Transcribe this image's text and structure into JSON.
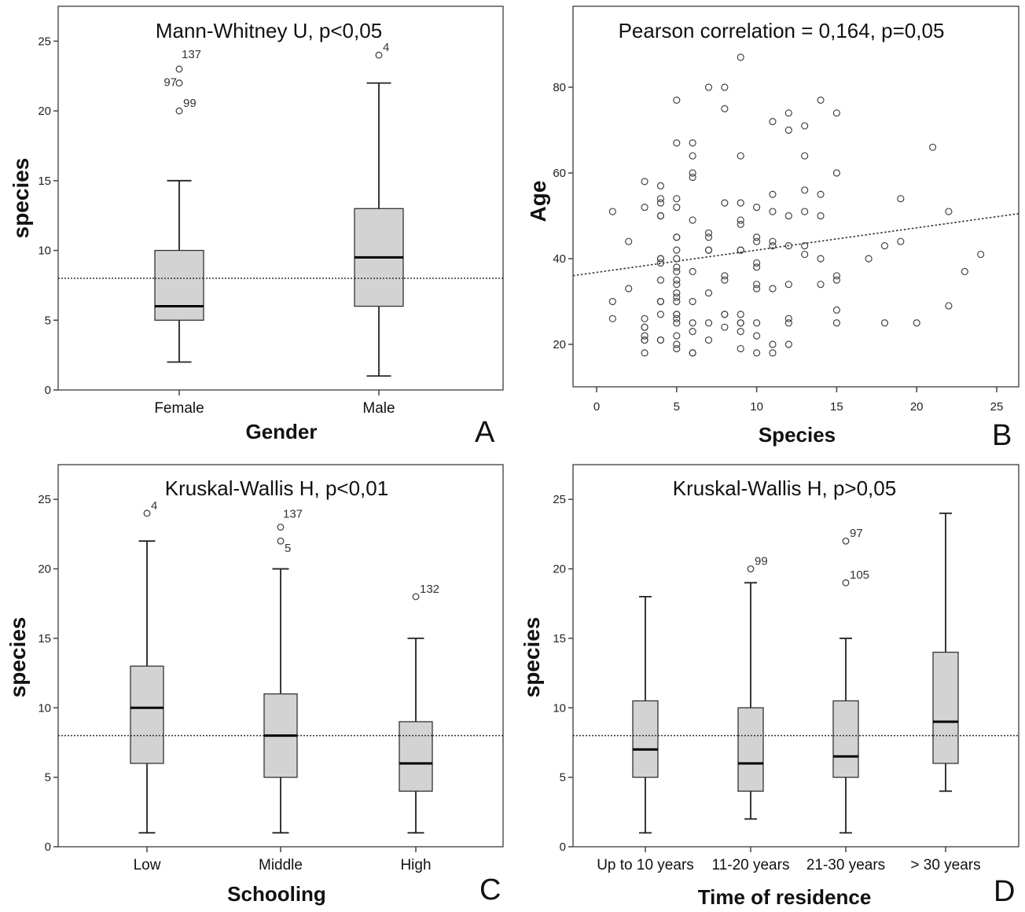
{
  "chart_data": [
    {
      "panel": "A",
      "type": "boxplot",
      "title": "Mann-Whitney U, p<0,05",
      "xlabel": "Gender",
      "ylabel": "species",
      "ylim": [
        0,
        27.5
      ],
      "yticks": [
        0,
        5,
        10,
        15,
        20,
        25
      ],
      "reference_line": 8,
      "categories": [
        "Female",
        "Male"
      ],
      "boxes": [
        {
          "min": 2,
          "q1": 5,
          "median": 6,
          "q3": 10,
          "max": 15,
          "outliers": [
            {
              "value": 23,
              "label": "137"
            },
            {
              "value": 22,
              "label": "97"
            },
            {
              "value": 20,
              "label": "99"
            }
          ]
        },
        {
          "min": 1,
          "q1": 6,
          "median": 9.5,
          "q3": 13,
          "max": 22,
          "outliers": [
            {
              "value": 24,
              "label": "4"
            }
          ]
        }
      ]
    },
    {
      "panel": "B",
      "type": "scatter",
      "title": "Pearson correlation =  0,164, p=0,05",
      "xlabel": "Species",
      "ylabel": "Age",
      "xlim": [
        -1.3,
        26.3
      ],
      "ylim": [
        10,
        96
      ],
      "xticks": [
        0,
        5,
        10,
        15,
        20,
        25
      ],
      "yticks": [
        20,
        40,
        60,
        80
      ],
      "fit_line": {
        "intercept": 36.8,
        "slope": 0.52,
        "style": "dotted"
      },
      "points": [
        [
          1,
          51
        ],
        [
          1,
          30
        ],
        [
          1,
          26
        ],
        [
          2,
          44
        ],
        [
          2,
          33
        ],
        [
          3,
          58
        ],
        [
          3,
          52
        ],
        [
          3,
          26
        ],
        [
          3,
          24
        ],
        [
          3,
          24
        ],
        [
          3,
          22
        ],
        [
          3,
          21
        ],
        [
          3,
          21
        ],
        [
          3,
          18
        ],
        [
          4,
          57
        ],
        [
          4,
          54
        ],
        [
          4,
          53
        ],
        [
          4,
          50
        ],
        [
          4,
          50
        ],
        [
          4,
          40
        ],
        [
          4,
          40
        ],
        [
          4,
          39
        ],
        [
          4,
          35
        ],
        [
          4,
          30
        ],
        [
          4,
          30
        ],
        [
          4,
          27
        ],
        [
          4,
          21
        ],
        [
          4,
          21
        ],
        [
          5,
          77
        ],
        [
          5,
          67
        ],
        [
          5,
          54
        ],
        [
          5,
          52
        ],
        [
          5,
          45
        ],
        [
          5,
          45
        ],
        [
          5,
          42
        ],
        [
          5,
          40
        ],
        [
          5,
          38
        ],
        [
          5,
          37
        ],
        [
          5,
          35
        ],
        [
          5,
          34
        ],
        [
          5,
          32
        ],
        [
          5,
          31
        ],
        [
          5,
          30
        ],
        [
          5,
          27
        ],
        [
          5,
          27
        ],
        [
          5,
          26
        ],
        [
          5,
          25
        ],
        [
          5,
          22
        ],
        [
          5,
          20
        ],
        [
          5,
          19
        ],
        [
          6,
          67
        ],
        [
          6,
          64
        ],
        [
          6,
          60
        ],
        [
          6,
          59
        ],
        [
          6,
          49
        ],
        [
          6,
          37
        ],
        [
          6,
          30
        ],
        [
          6,
          25
        ],
        [
          6,
          23
        ],
        [
          6,
          18
        ],
        [
          6,
          18
        ],
        [
          7,
          80
        ],
        [
          7,
          46
        ],
        [
          7,
          45
        ],
        [
          7,
          42
        ],
        [
          7,
          42
        ],
        [
          7,
          32
        ],
        [
          7,
          25
        ],
        [
          7,
          21
        ],
        [
          8,
          80
        ],
        [
          8,
          75
        ],
        [
          8,
          53
        ],
        [
          8,
          36
        ],
        [
          8,
          35
        ],
        [
          8,
          27
        ],
        [
          8,
          27
        ],
        [
          8,
          24
        ],
        [
          9,
          87
        ],
        [
          9,
          64
        ],
        [
          9,
          53
        ],
        [
          9,
          49
        ],
        [
          9,
          48
        ],
        [
          9,
          42
        ],
        [
          9,
          42
        ],
        [
          9,
          27
        ],
        [
          9,
          25
        ],
        [
          9,
          25
        ],
        [
          9,
          23
        ],
        [
          9,
          19
        ],
        [
          10,
          52
        ],
        [
          10,
          45
        ],
        [
          10,
          44
        ],
        [
          10,
          39
        ],
        [
          10,
          38
        ],
        [
          10,
          34
        ],
        [
          10,
          33
        ],
        [
          10,
          25
        ],
        [
          10,
          22
        ],
        [
          10,
          18
        ],
        [
          11,
          72
        ],
        [
          11,
          55
        ],
        [
          11,
          51
        ],
        [
          11,
          44
        ],
        [
          11,
          43
        ],
        [
          11,
          33
        ],
        [
          11,
          20
        ],
        [
          11,
          18
        ],
        [
          12,
          74
        ],
        [
          12,
          70
        ],
        [
          12,
          50
        ],
        [
          12,
          43
        ],
        [
          12,
          34
        ],
        [
          12,
          26
        ],
        [
          12,
          25
        ],
        [
          12,
          20
        ],
        [
          13,
          71
        ],
        [
          13,
          64
        ],
        [
          13,
          56
        ],
        [
          13,
          51
        ],
        [
          13,
          43
        ],
        [
          13,
          41
        ],
        [
          14,
          77
        ],
        [
          14,
          55
        ],
        [
          14,
          50
        ],
        [
          14,
          40
        ],
        [
          14,
          34
        ],
        [
          15,
          74
        ],
        [
          15,
          60
        ],
        [
          15,
          36
        ],
        [
          15,
          35
        ],
        [
          15,
          28
        ],
        [
          15,
          25
        ],
        [
          17,
          40
        ],
        [
          18,
          43
        ],
        [
          18,
          25
        ],
        [
          19,
          54
        ],
        [
          19,
          44
        ],
        [
          20,
          25
        ],
        [
          21,
          66
        ],
        [
          22,
          51
        ],
        [
          22,
          29
        ],
        [
          23,
          37
        ],
        [
          24,
          41
        ]
      ]
    },
    {
      "panel": "C",
      "type": "boxplot",
      "title": "Kruskal-Wallis H, p<0,01",
      "xlabel": "Schooling",
      "ylabel": "species",
      "ylim": [
        0,
        27.5
      ],
      "yticks": [
        0,
        5,
        10,
        15,
        20,
        25
      ],
      "reference_line": 8,
      "categories": [
        "Low",
        "Middle",
        "High"
      ],
      "boxes": [
        {
          "min": 1,
          "q1": 6,
          "median": 10,
          "q3": 13,
          "max": 22,
          "outliers": [
            {
              "value": 24,
              "label": "4"
            }
          ]
        },
        {
          "min": 1,
          "q1": 5,
          "median": 8,
          "q3": 11,
          "max": 20,
          "outliers": [
            {
              "value": 23,
              "label": "137"
            },
            {
              "value": 22,
              "label": "5"
            }
          ]
        },
        {
          "min": 1,
          "q1": 4,
          "median": 6,
          "q3": 9,
          "max": 15,
          "outliers": [
            {
              "value": 18,
              "label": "132"
            }
          ]
        }
      ]
    },
    {
      "panel": "D",
      "type": "boxplot",
      "title": "Kruskal-Wallis H, p>0,05",
      "xlabel": "Time of residence",
      "ylabel": "species",
      "ylim": [
        0,
        27.5
      ],
      "yticks": [
        0,
        5,
        10,
        15,
        20,
        25
      ],
      "reference_line": 8,
      "categories": [
        "Up to 10 years",
        "11-20 years",
        "21-30 years",
        "> 30 years"
      ],
      "boxes": [
        {
          "min": 1,
          "q1": 5,
          "median": 7,
          "q3": 10.5,
          "max": 18,
          "outliers": []
        },
        {
          "min": 2,
          "q1": 4,
          "median": 6,
          "q3": 10,
          "max": 19,
          "outliers": [
            {
              "value": 20,
              "label": "99"
            }
          ]
        },
        {
          "min": 1,
          "q1": 5,
          "median": 6.5,
          "q3": 10.5,
          "max": 15,
          "outliers": [
            {
              "value": 22,
              "label": "97"
            },
            {
              "value": 19,
              "label": "105"
            }
          ]
        },
        {
          "min": 4,
          "q1": 6,
          "median": 9,
          "q3": 14,
          "max": 24,
          "outliers": []
        }
      ]
    }
  ],
  "colors": {
    "box_fill": "#d3d3d3",
    "line": "#222222",
    "frame": "#555555"
  }
}
